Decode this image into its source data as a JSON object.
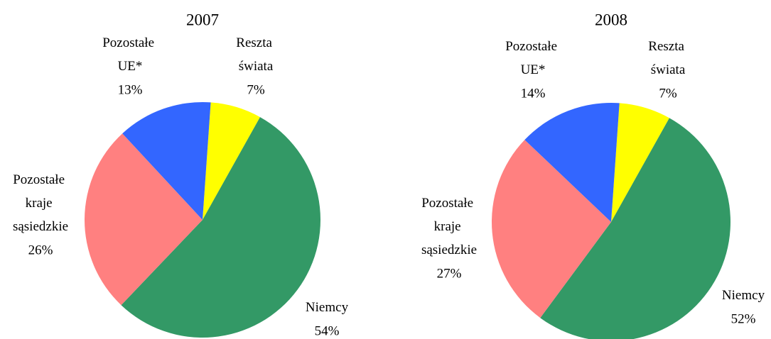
{
  "chart_data": [
    {
      "type": "pie",
      "title": "2007",
      "categories": [
        "Reszta świata",
        "Niemcy",
        "Pozostałe kraje sąsiedzkie",
        "Pozostałe UE*"
      ],
      "values": [
        7,
        54,
        26,
        13
      ],
      "value_labels": [
        "7%",
        "54%",
        "26%",
        "13%"
      ],
      "colors": [
        "#ffff00",
        "#339966",
        "#ff8080",
        "#3366ff"
      ]
    },
    {
      "type": "pie",
      "title": "2008",
      "categories": [
        "Reszta świata",
        "Niemcy",
        "Pozostałe kraje sąsiedzkie",
        "Pozostałe UE*"
      ],
      "values": [
        7,
        52,
        27,
        14
      ],
      "value_labels": [
        "7%",
        "52%",
        "27%",
        "14%"
      ],
      "colors": [
        "#ffff00",
        "#339966",
        "#ff8080",
        "#3366ff"
      ]
    }
  ]
}
